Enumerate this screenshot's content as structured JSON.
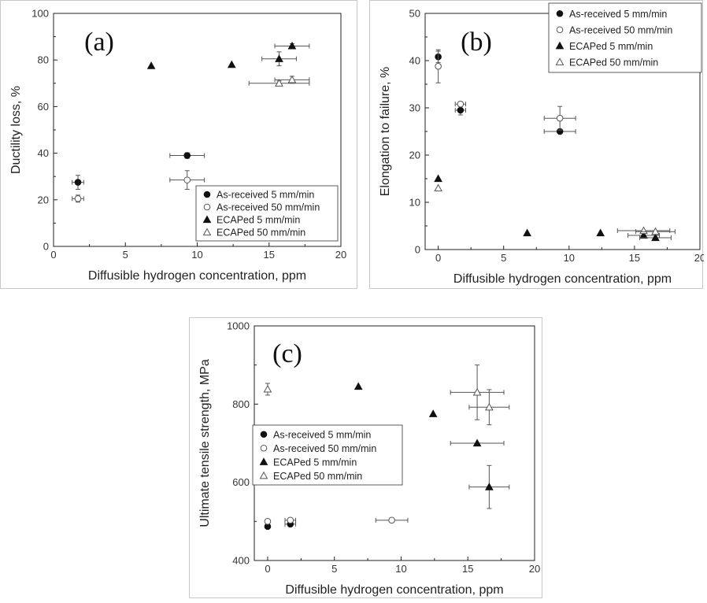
{
  "chart_data": [
    {
      "id": "a",
      "type": "scatter",
      "panel_label": "(a)",
      "xlabel": "Diffusible hydrogen concentration, ppm",
      "ylabel": "Ductility loss, %",
      "xlim": [
        0,
        20
      ],
      "ylim": [
        0,
        100
      ],
      "xticks": [
        0,
        5,
        10,
        15,
        20
      ],
      "yticks": [
        0,
        20,
        40,
        60,
        80,
        100
      ],
      "legend_position": "bottom-right",
      "series": [
        {
          "name": "As-received 5 mm/min",
          "marker": "circle-filled",
          "points": [
            {
              "x": 1.7,
              "y": 27.5,
              "xerr": 0.4,
              "yerr": 3
            },
            {
              "x": 9.3,
              "y": 39,
              "xerr": 1.2,
              "yerr": 1.2
            }
          ]
        },
        {
          "name": "As-received 50 mm/min",
          "marker": "circle-open",
          "points": [
            {
              "x": 1.7,
              "y": 20.5,
              "xerr": 0.4,
              "yerr": 1.5
            },
            {
              "x": 9.3,
              "y": 28.5,
              "xerr": 1.2,
              "yerr": 4
            }
          ]
        },
        {
          "name": "ECAPed 5 mm/min",
          "marker": "triangle-filled",
          "points": [
            {
              "x": 6.8,
              "y": 77.5
            },
            {
              "x": 12.4,
              "y": 78
            },
            {
              "x": 15.7,
              "y": 80.5,
              "xerr": 1.2,
              "yerr": 3
            },
            {
              "x": 16.6,
              "y": 86,
              "xerr": 1.2,
              "yerr": 1
            }
          ]
        },
        {
          "name": "ECAPed 50 mm/min",
          "marker": "triangle-open",
          "points": [
            {
              "x": 15.7,
              "y": 70,
              "xerr": 2.1,
              "yerr": 1
            },
            {
              "x": 16.6,
              "y": 71.5,
              "xerr": 1.2,
              "yerr": 1.5
            }
          ]
        }
      ]
    },
    {
      "id": "b",
      "type": "scatter",
      "panel_label": "(b)",
      "xlabel": "Diffusible hydrogen concentration, ppm",
      "ylabel": "Elongation to failure, %",
      "xlim": [
        -1,
        20
      ],
      "ylim": [
        0,
        50
      ],
      "xticks": [
        0,
        5,
        10,
        15,
        20
      ],
      "yticks": [
        0,
        10,
        20,
        30,
        40,
        50
      ],
      "legend_position": "top-right",
      "series": [
        {
          "name": "As-received 5 mm/min",
          "marker": "circle-filled",
          "points": [
            {
              "x": 0,
              "y": 40.8,
              "yerr": 1.2
            },
            {
              "x": 1.7,
              "y": 29.5,
              "xerr": 0.4,
              "yerr": 1
            },
            {
              "x": 9.3,
              "y": 25,
              "xerr": 1.2
            }
          ]
        },
        {
          "name": "As-received 50 mm/min",
          "marker": "circle-open",
          "points": [
            {
              "x": 0,
              "y": 38.8,
              "yerr": 3.5
            },
            {
              "x": 1.7,
              "y": 30.8,
              "xerr": 0.4,
              "yerr": 0.5
            },
            {
              "x": 9.3,
              "y": 27.8,
              "xerr": 1.2,
              "yerr": 2.5
            }
          ]
        },
        {
          "name": "ECAPed 5 mm/min",
          "marker": "triangle-filled",
          "points": [
            {
              "x": 0,
              "y": 15
            },
            {
              "x": 6.8,
              "y": 3.5
            },
            {
              "x": 12.4,
              "y": 3.5
            },
            {
              "x": 15.7,
              "y": 3,
              "xerr": 1.2
            },
            {
              "x": 16.6,
              "y": 2.5,
              "xerr": 1.2
            }
          ]
        },
        {
          "name": "ECAPed 50 mm/min",
          "marker": "triangle-open",
          "points": [
            {
              "x": 0,
              "y": 13
            },
            {
              "x": 15.7,
              "y": 4,
              "xerr": 2
            },
            {
              "x": 16.6,
              "y": 3.8,
              "xerr": 1.5
            }
          ]
        }
      ]
    },
    {
      "id": "c",
      "type": "scatter",
      "panel_label": "(c)",
      "xlabel": "Diffusible hydrogen concentration, ppm",
      "ylabel": "Ultimate tensile strength, MPa",
      "xlim": [
        -1,
        20
      ],
      "ylim": [
        400,
        1000
      ],
      "xticks": [
        0,
        5,
        10,
        15,
        20
      ],
      "yticks": [
        400,
        600,
        800,
        1000
      ],
      "legend_position": "middle-left",
      "series": [
        {
          "name": "As-received 5 mm/min",
          "marker": "circle-filled",
          "points": [
            {
              "x": 0,
              "y": 487
            },
            {
              "x": 1.7,
              "y": 493,
              "xerr": 0.4
            }
          ]
        },
        {
          "name": "As-received 50 mm/min",
          "marker": "circle-open",
          "points": [
            {
              "x": 0,
              "y": 500
            },
            {
              "x": 1.7,
              "y": 503,
              "xerr": 0.4
            },
            {
              "x": 9.3,
              "y": 503,
              "xerr": 1.2
            }
          ]
        },
        {
          "name": "ECAPed 5 mm/min",
          "marker": "triangle-filled",
          "points": [
            {
              "x": 6.8,
              "y": 845
            },
            {
              "x": 12.4,
              "y": 775
            },
            {
              "x": 15.7,
              "y": 700,
              "xerr": 2
            },
            {
              "x": 16.6,
              "y": 588,
              "xerr": 1.5,
              "yerr": 55
            }
          ]
        },
        {
          "name": "ECAPed 50 mm/min",
          "marker": "triangle-open",
          "points": [
            {
              "x": 0,
              "y": 838,
              "yerr": 15
            },
            {
              "x": 15.7,
              "y": 830,
              "xerr": 2,
              "yerr": 70
            },
            {
              "x": 16.6,
              "y": 792,
              "xerr": 1.5,
              "yerr": 45
            }
          ]
        }
      ]
    }
  ]
}
